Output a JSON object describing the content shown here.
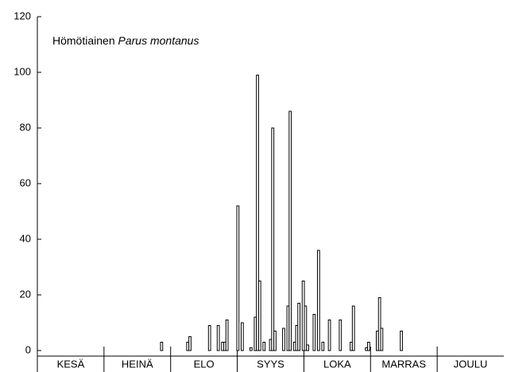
{
  "chart_data": {
    "type": "bar",
    "label": "Hömötiainen",
    "label_species": "Parus montanus",
    "months": [
      "KESÄ",
      "HEINÄ",
      "ELO",
      "SYYS",
      "LOKA",
      "MARRAS",
      "JOULU"
    ],
    "x": [
      57,
      69,
      70,
      79,
      83,
      85,
      86,
      87,
      92,
      94,
      98,
      100,
      101,
      102,
      104,
      107,
      108,
      109,
      113,
      115,
      116,
      118,
      119,
      120,
      122,
      123,
      124,
      127,
      129,
      131,
      134,
      139,
      144,
      145,
      151,
      152,
      156,
      157,
      158,
      167
    ],
    "values": [
      3,
      3,
      5,
      9,
      9,
      3,
      3,
      11,
      52,
      10,
      1,
      12,
      99,
      25,
      3,
      4,
      80,
      7,
      8,
      16,
      86,
      3,
      9,
      17,
      25,
      16,
      2,
      13,
      36,
      3,
      11,
      11,
      3,
      16,
      1,
      3,
      7,
      19,
      8,
      7
    ],
    "color": "#ffffff",
    "xlim": [
      0,
      214
    ],
    "ylim": [
      0,
      120
    ],
    "yticks": [
      0,
      20,
      40,
      60,
      80,
      100,
      120
    ]
  }
}
